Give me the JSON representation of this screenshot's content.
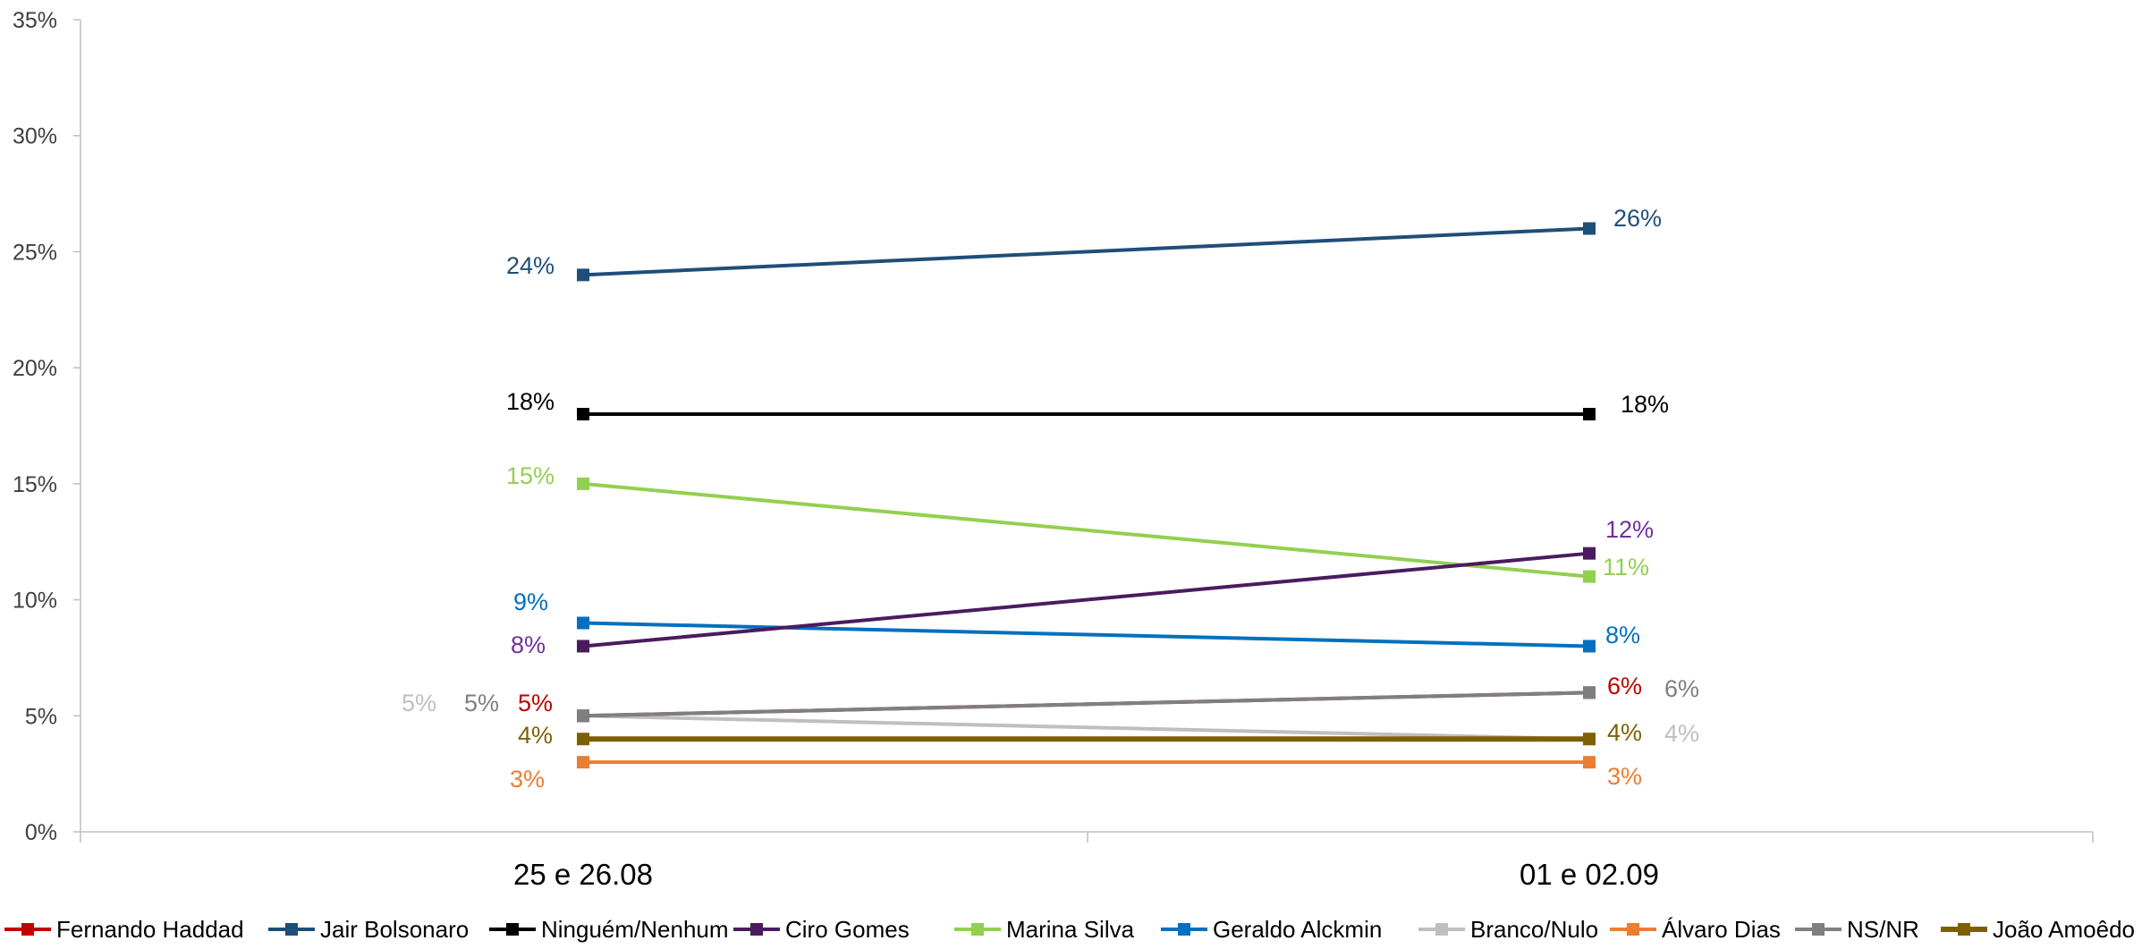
{
  "chart_data": {
    "type": "line",
    "title": "",
    "xlabel": "",
    "ylabel": "",
    "categories": [
      "25 e 26.08",
      "01 e 02.09"
    ],
    "ylim": [
      0,
      35
    ],
    "yticks": [
      "0%",
      "5%",
      "10%",
      "15%",
      "20%",
      "25%",
      "30%",
      "35%"
    ],
    "legend_position": "bottom",
    "grid": false,
    "series": [
      {
        "name": "Fernando Haddad",
        "color": "#c00000",
        "values": [
          5,
          6
        ],
        "labels": [
          "5%",
          "6%"
        ]
      },
      {
        "name": "Jair Bolsonaro",
        "color": "#1f4e79",
        "values": [
          24,
          26
        ],
        "labels": [
          "24%",
          "26%"
        ]
      },
      {
        "name": "Ninguém/Nenhum",
        "color": "#000000",
        "values": [
          18,
          18
        ],
        "labels": [
          "18%",
          "18%"
        ]
      },
      {
        "name": "Ciro Gomes",
        "color": "#4b1b60",
        "values": [
          8,
          12
        ],
        "labels": [
          "8%",
          "12%"
        ],
        "label_color": "#7030a0"
      },
      {
        "name": "Marina Silva",
        "color": "#92d050",
        "values": [
          15,
          11
        ],
        "labels": [
          "15%",
          "11%"
        ]
      },
      {
        "name": "Geraldo Alckmin",
        "color": "#0070c0",
        "values": [
          9,
          8
        ],
        "labels": [
          "9%",
          "8%"
        ]
      },
      {
        "name": "Branco/Nulo",
        "color": "#bfbfbf",
        "values": [
          5,
          4
        ],
        "labels": [
          "5%",
          "4%"
        ]
      },
      {
        "name": "Álvaro Dias",
        "color": "#ed7d31",
        "values": [
          3,
          3
        ],
        "labels": [
          "3%",
          "3%"
        ]
      },
      {
        "name": "NS/NR",
        "color": "#7f7f7f",
        "values": [
          5,
          6
        ],
        "labels": [
          "5%",
          "6%"
        ]
      },
      {
        "name": "João Amoêdo",
        "color": "#7f6000",
        "values": [
          4,
          4
        ],
        "labels": [
          "4%",
          "4%"
        ]
      }
    ]
  }
}
